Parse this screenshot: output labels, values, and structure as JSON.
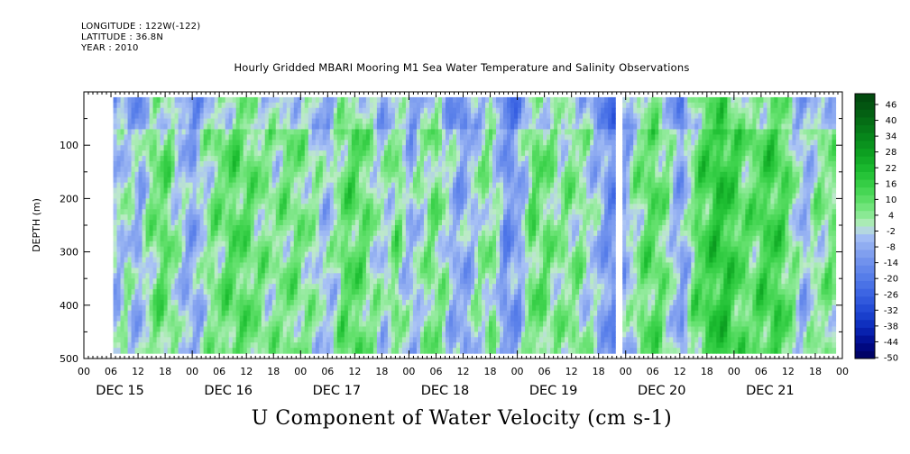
{
  "header": {
    "longitude": "LONGITUDE : 122W(-122)",
    "latitude": "LATITUDE : 36.8N",
    "year": "YEAR : 2010",
    "title": "Hourly Gridded MBARI Mooring M1 Sea Water Temperature and Salinity Observations"
  },
  "chart_data": {
    "type": "heatmap",
    "title": "Hourly Gridded MBARI Mooring M1 Sea Water Temperature and Salinity Observations",
    "variable_label": "U Component of Water Velocity (cm s-1)",
    "ylabel": "DEPTH (m)",
    "y_axis": {
      "range": [
        0,
        500
      ],
      "inverted": true,
      "tick_labels": [
        "100",
        "200",
        "300",
        "400",
        "500"
      ],
      "tick_values": [
        100,
        200,
        300,
        400,
        500
      ]
    },
    "x_axis": {
      "range_hours": [
        0,
        168
      ],
      "hour_tick_labels": [
        "00",
        "06",
        "12",
        "18",
        "00",
        "06",
        "12",
        "18",
        "00",
        "06",
        "12",
        "18",
        "00",
        "06",
        "12",
        "18",
        "00",
        "06",
        "12",
        "18",
        "00",
        "06",
        "12",
        "18",
        "00",
        "06",
        "12",
        "18",
        "00"
      ],
      "day_labels": [
        "DEC 15",
        "DEC 16",
        "DEC 17",
        "DEC 18",
        "DEC 19",
        "DEC 20",
        "DEC 21"
      ]
    },
    "data_extent": {
      "time_start_hour": 6.5,
      "time_end_hour": 166.5,
      "depth_top": 10,
      "depth_bottom": 490
    },
    "colorbar": {
      "labels": [
        "46",
        "40",
        "34",
        "28",
        "22",
        "16",
        "10",
        "4",
        "-2",
        "-8",
        "-14",
        "-20",
        "-26",
        "-32",
        "-38",
        "-44",
        "-50"
      ],
      "min": -50,
      "max": 52,
      "step": 3
    },
    "column_means": [
      {
        "hour": 7,
        "u": -4
      },
      {
        "hour": 9,
        "u": 2
      },
      {
        "hour": 12,
        "u": -6
      },
      {
        "hour": 15,
        "u": 8
      },
      {
        "hour": 18,
        "u": 10
      },
      {
        "hour": 21,
        "u": -2
      },
      {
        "hour": 24,
        "u": -8
      },
      {
        "hour": 27,
        "u": 4
      },
      {
        "hour": 30,
        "u": 8
      },
      {
        "hour": 33,
        "u": 12
      },
      {
        "hour": 36,
        "u": 10
      },
      {
        "hour": 39,
        "u": 6
      },
      {
        "hour": 42,
        "u": 4
      },
      {
        "hour": 45,
        "u": 8
      },
      {
        "hour": 48,
        "u": 6
      },
      {
        "hour": 51,
        "u": 2
      },
      {
        "hour": 54,
        "u": -4
      },
      {
        "hour": 57,
        "u": 10
      },
      {
        "hour": 60,
        "u": 12
      },
      {
        "hour": 63,
        "u": 6
      },
      {
        "hour": 66,
        "u": -2
      },
      {
        "hour": 69,
        "u": 8
      },
      {
        "hour": 72,
        "u": -6
      },
      {
        "hour": 75,
        "u": 4
      },
      {
        "hour": 78,
        "u": 8
      },
      {
        "hour": 81,
        "u": -4
      },
      {
        "hour": 84,
        "u": -8
      },
      {
        "hour": 87,
        "u": 2
      },
      {
        "hour": 90,
        "u": 6
      },
      {
        "hour": 93,
        "u": -12
      },
      {
        "hour": 96,
        "u": -8
      },
      {
        "hour": 99,
        "u": 10
      },
      {
        "hour": 102,
        "u": 8
      },
      {
        "hour": 105,
        "u": 4
      },
      {
        "hour": 108,
        "u": 6
      },
      {
        "hour": 111,
        "u": 2
      },
      {
        "hour": 114,
        "u": -6
      },
      {
        "hour": 117,
        "u": -14
      },
      {
        "hour": 120,
        "u": -4
      },
      {
        "hour": 123,
        "u": 8
      },
      {
        "hour": 126,
        "u": 12
      },
      {
        "hour": 129,
        "u": 4
      },
      {
        "hour": 132,
        "u": -10
      },
      {
        "hour": 135,
        "u": 10
      },
      {
        "hour": 138,
        "u": 16
      },
      {
        "hour": 141,
        "u": 20
      },
      {
        "hour": 144,
        "u": 14
      },
      {
        "hour": 147,
        "u": 8
      },
      {
        "hour": 150,
        "u": 14
      },
      {
        "hour": 153,
        "u": 16
      },
      {
        "hour": 156,
        "u": 8
      },
      {
        "hour": 159,
        "u": -6
      },
      {
        "hour": 162,
        "u": 4
      },
      {
        "hour": 165,
        "u": 6
      }
    ],
    "gap_hour": 118.5
  }
}
